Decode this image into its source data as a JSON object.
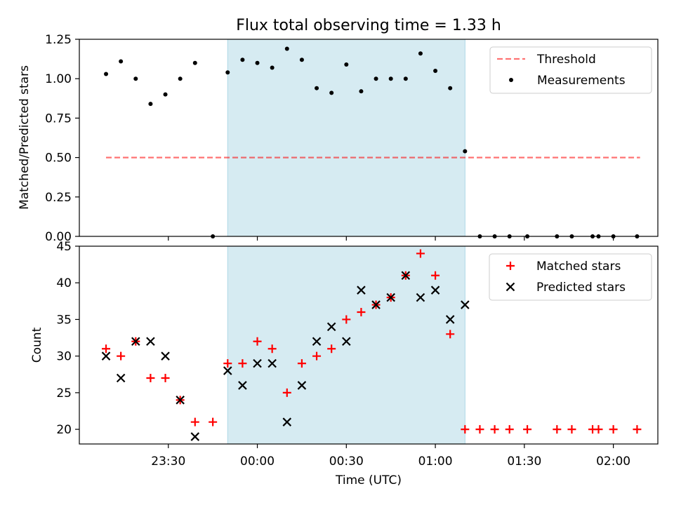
{
  "title": "Flux total observing time = 1.33 h",
  "colors": {
    "shade": "#add8e6",
    "threshold": "#ff0000",
    "matched": "#ff0000",
    "predicted": "#000000",
    "measurement": "#000000"
  },
  "chart_data": [
    {
      "type": "scatter",
      "ylabel": "Matched/Predicted stars",
      "ylim": [
        0,
        1.25
      ],
      "yticks": [
        0,
        0.25,
        0.5,
        0.75,
        1.0,
        1.25
      ],
      "ytick_labels": [
        "0.00",
        "0.25",
        "0.50",
        "0.75",
        "1.00",
        "1.25"
      ],
      "xlim": [
        "23:00",
        "02:15"
      ],
      "xticks": [
        "23:30",
        "00:00",
        "00:30",
        "01:00",
        "01:30",
        "02:00"
      ],
      "shaded_interval": [
        "23:50",
        "01:10"
      ],
      "legend": {
        "placement": "top-right",
        "entries": [
          "Threshold",
          "Measurements"
        ]
      },
      "series": [
        {
          "name": "Threshold",
          "style": "dashed-line",
          "x": [
            "23:09",
            "02:09"
          ],
          "y": [
            0.5,
            0.5
          ]
        },
        {
          "name": "Measurements",
          "style": "dot",
          "x": [
            "23:09",
            "23:14",
            "23:19",
            "23:24",
            "23:29",
            "23:34",
            "23:39",
            "23:45",
            "23:50",
            "23:55",
            "00:00",
            "00:05",
            "00:10",
            "00:15",
            "00:20",
            "00:25",
            "00:30",
            "00:35",
            "00:40",
            "00:45",
            "00:50",
            "00:55",
            "01:00",
            "01:05",
            "01:10",
            "01:15",
            "01:20",
            "01:25",
            "01:31",
            "01:41",
            "01:46",
            "01:53",
            "01:55",
            "02:00",
            "02:08"
          ],
          "y": [
            1.03,
            1.11,
            1.0,
            0.84,
            0.9,
            1.0,
            1.1,
            0.0,
            1.04,
            1.12,
            1.1,
            1.07,
            1.19,
            1.12,
            0.94,
            0.91,
            1.09,
            0.92,
            1.0,
            1.0,
            1.0,
            1.16,
            1.05,
            0.94,
            0.54,
            0.0,
            0.0,
            0.0,
            0.0,
            0.0,
            0.0,
            0.0,
            0.0,
            0.0,
            0.0
          ]
        }
      ]
    },
    {
      "type": "scatter",
      "xlabel": "Time (UTC)",
      "ylabel": "Count",
      "ylim": [
        18,
        45
      ],
      "yticks": [
        20,
        25,
        30,
        35,
        40,
        45
      ],
      "ytick_labels": [
        "20",
        "25",
        "30",
        "35",
        "40",
        "45"
      ],
      "xlim": [
        "23:00",
        "02:15"
      ],
      "xticks": [
        "23:30",
        "00:00",
        "00:30",
        "01:00",
        "01:30",
        "02:00"
      ],
      "shaded_interval": [
        "23:50",
        "01:10"
      ],
      "legend": {
        "placement": "top-right",
        "entries": [
          "Matched stars",
          "Predicted stars"
        ]
      },
      "series": [
        {
          "name": "Matched stars",
          "marker": "+",
          "x": [
            "23:09",
            "23:14",
            "23:19",
            "23:24",
            "23:29",
            "23:34",
            "23:39",
            "23:45",
            "23:50",
            "23:55",
            "00:00",
            "00:05",
            "00:10",
            "00:15",
            "00:20",
            "00:25",
            "00:30",
            "00:35",
            "00:40",
            "00:45",
            "00:50",
            "00:55",
            "01:00",
            "01:05",
            "01:10",
            "01:15",
            "01:20",
            "01:25",
            "01:31",
            "01:41",
            "01:46",
            "01:53",
            "01:55",
            "02:00",
            "02:08"
          ],
          "y": [
            31,
            30,
            32,
            27,
            27,
            24,
            21,
            21,
            29,
            29,
            32,
            31,
            25,
            29,
            30,
            31,
            35,
            36,
            37,
            38,
            41,
            44,
            41,
            33,
            20,
            20,
            20,
            20,
            20,
            20,
            20,
            20,
            20,
            20,
            20
          ]
        },
        {
          "name": "Predicted stars",
          "marker": "x",
          "x": [
            "23:09",
            "23:14",
            "23:19",
            "23:24",
            "23:29",
            "23:34",
            "23:39",
            "23:50",
            "23:55",
            "00:00",
            "00:05",
            "00:10",
            "00:15",
            "00:20",
            "00:25",
            "00:30",
            "00:35",
            "00:40",
            "00:45",
            "00:50",
            "00:55",
            "01:00",
            "01:05",
            "01:10"
          ],
          "y": [
            30,
            27,
            32,
            32,
            30,
            24,
            19,
            28,
            26,
            29,
            29,
            21,
            26,
            32,
            34,
            32,
            39,
            37,
            38,
            41,
            38,
            39,
            35,
            37
          ]
        }
      ]
    }
  ]
}
